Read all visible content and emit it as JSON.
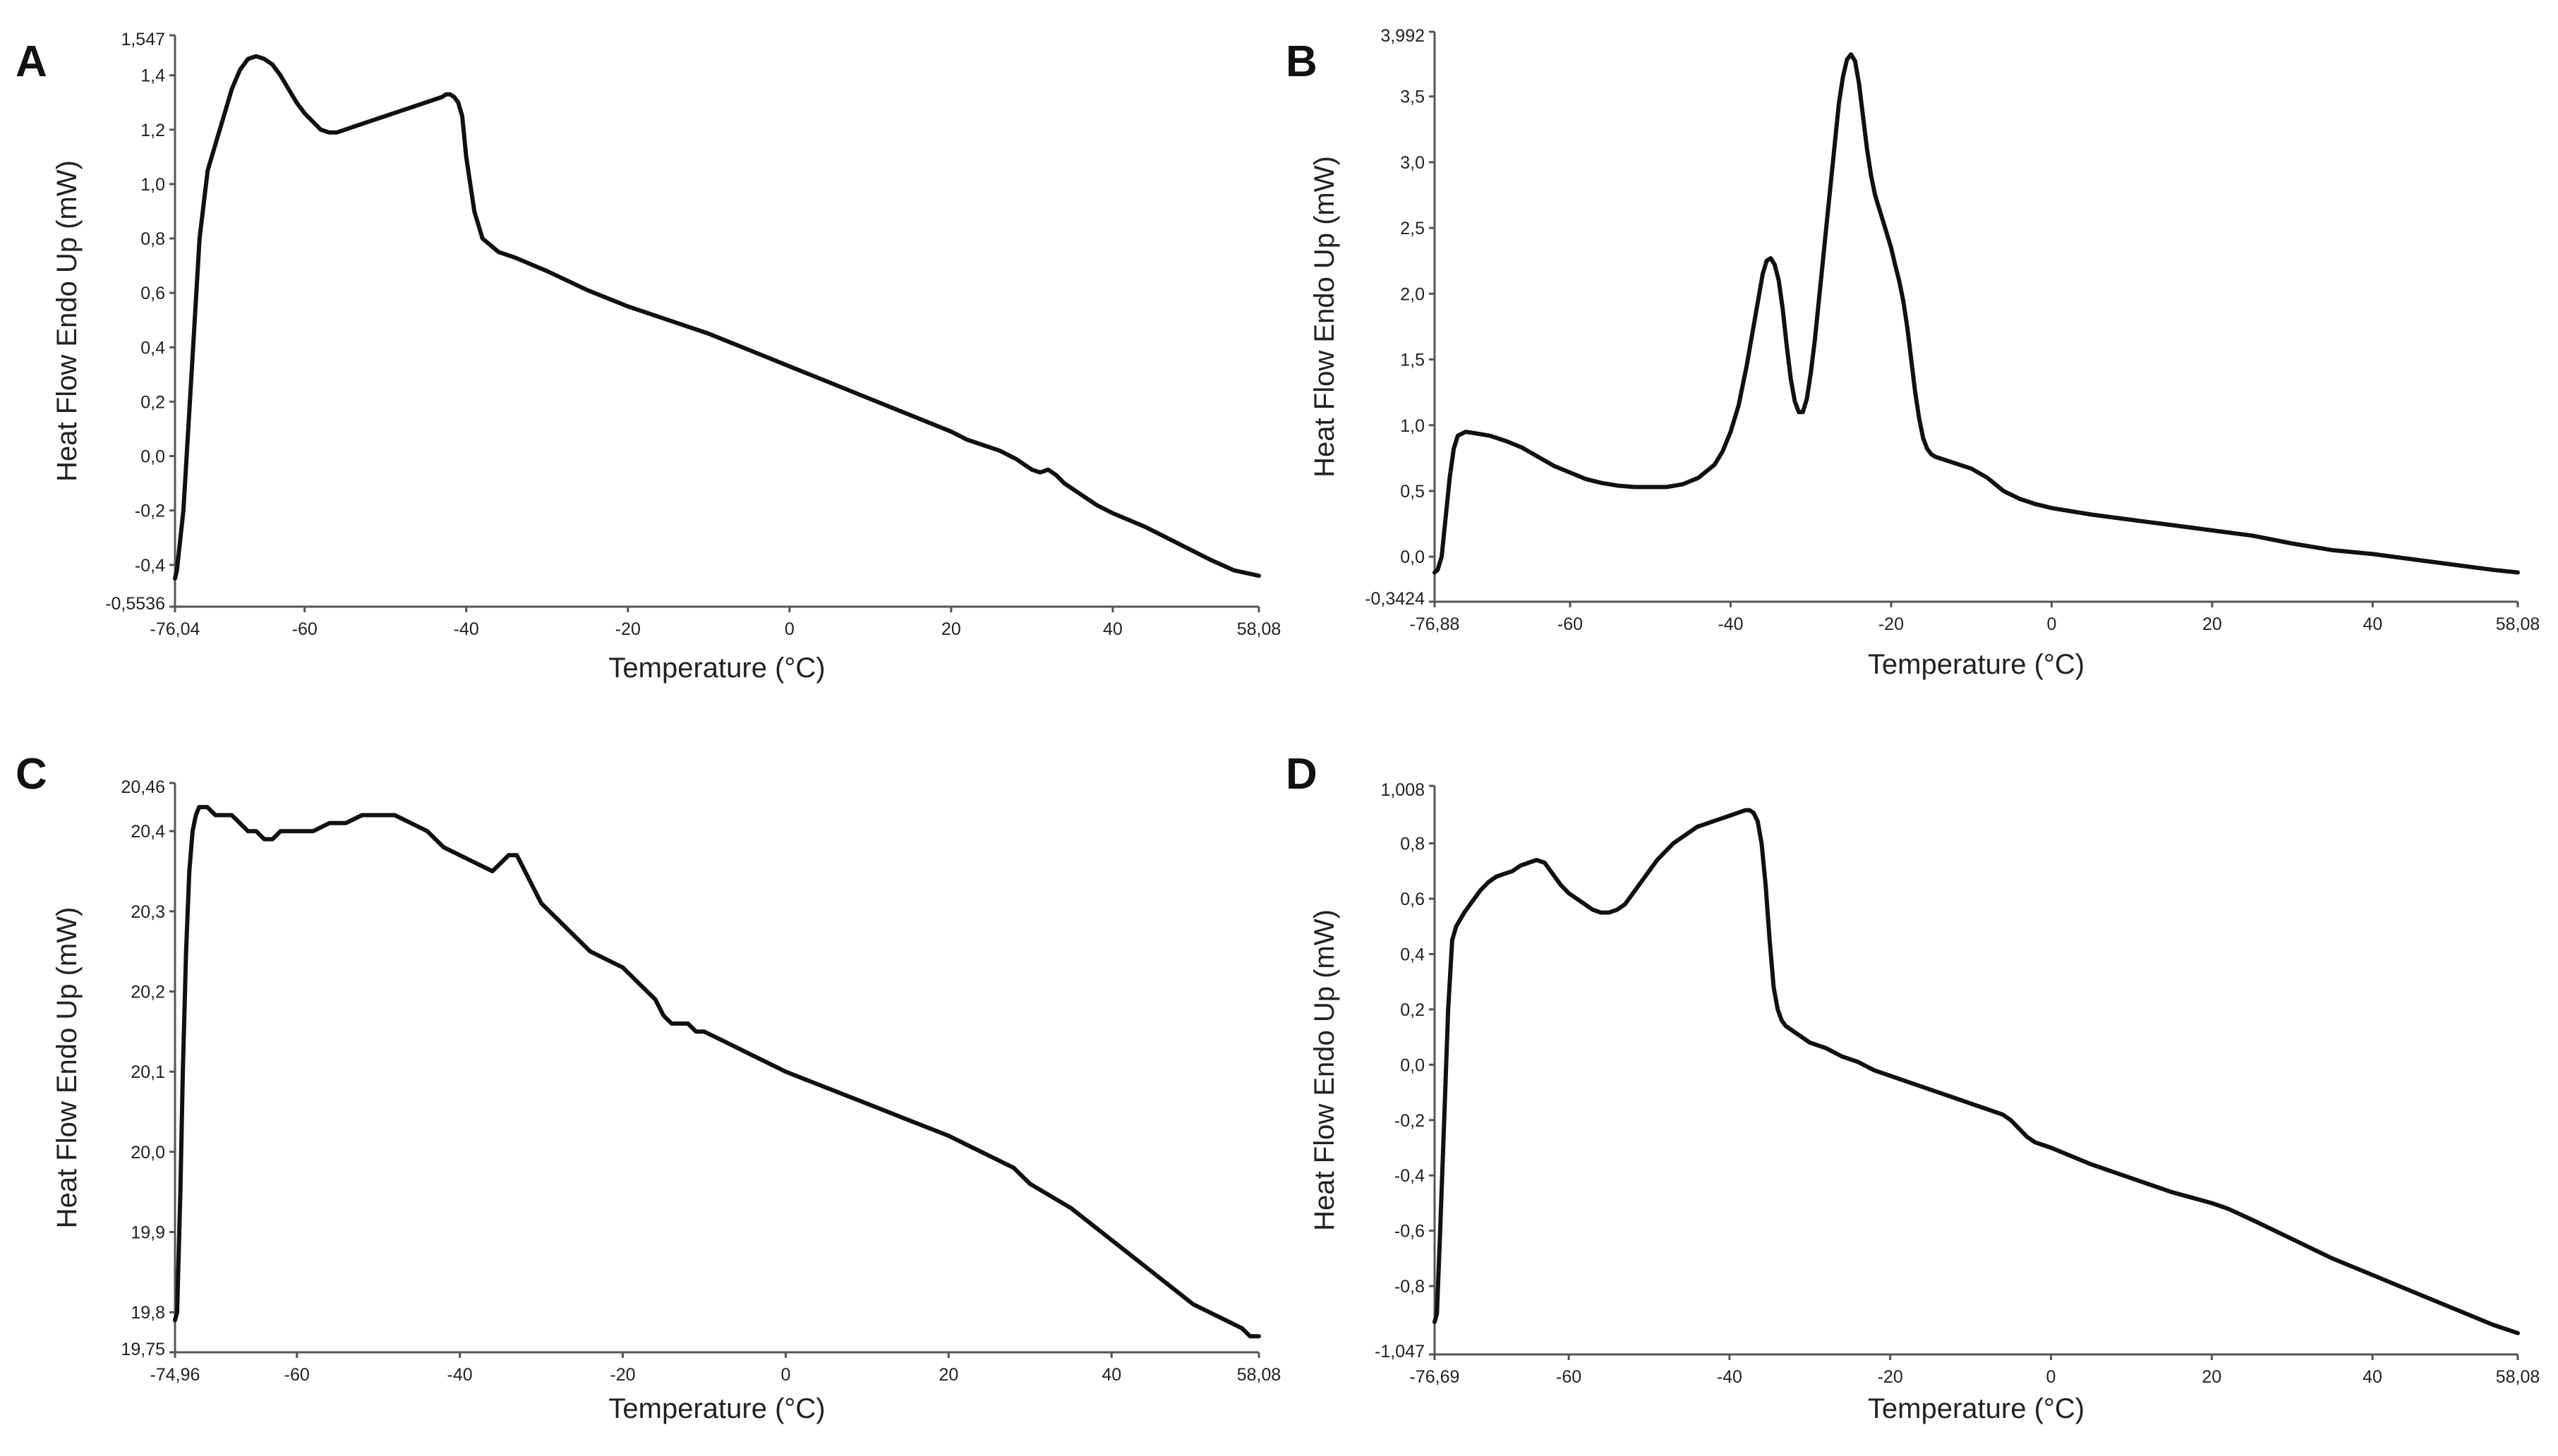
{
  "chart_data": [
    {
      "panel": "A",
      "type": "line",
      "xlabel": "Temperature (°C)",
      "ylabel": "Heat Flow Endo Up (mW)",
      "xlim": [
        -76.04,
        58.08
      ],
      "ylim": [
        -0.5536,
        1.547
      ],
      "x_ticks": [
        -60,
        -40,
        -20,
        0,
        20,
        40
      ],
      "x_tick_labels": [
        "-60",
        "-40",
        "-20",
        "0",
        "20",
        "40"
      ],
      "x_limit_labels": [
        "-76,04",
        "58,08"
      ],
      "y_ticks": [
        -0.4,
        -0.2,
        0.0,
        0.2,
        0.4,
        0.6,
        0.8,
        1.0,
        1.2,
        1.4
      ],
      "y_tick_labels": [
        "-0,4",
        "-0,2",
        "0,0",
        "0,2",
        "0,4",
        "0,6",
        "0,8",
        "1,0",
        "1,2",
        "1,4"
      ],
      "y_limit_labels": [
        "-0,5536",
        "1,547"
      ],
      "series": [
        {
          "name": "A",
          "x": [
            -76.04,
            -75.8,
            -75.0,
            -74.0,
            -73.0,
            -72.0,
            -71.0,
            -70.0,
            -69.0,
            -68.0,
            -67.0,
            -66.0,
            -65.0,
            -64.0,
            -63.0,
            -62.0,
            -61.0,
            -60.0,
            -59.0,
            -58.0,
            -57.0,
            -56.0,
            -55.0,
            -54.0,
            -52.0,
            -50.0,
            -48.0,
            -46.0,
            -44.0,
            -43.0,
            -42.5,
            -42.0,
            -41.5,
            -41.0,
            -40.5,
            -40.0,
            -39.0,
            -38.0,
            -36.0,
            -34.0,
            -30.0,
            -25.0,
            -20.0,
            -15.0,
            -10.0,
            -5.0,
            0.0,
            5.0,
            10.0,
            15.0,
            20.0,
            22.0,
            24.0,
            26.0,
            28.0,
            29.0,
            30.0,
            31.0,
            32.0,
            33.0,
            34.0,
            36.0,
            38.0,
            40.0,
            44.0,
            48.0,
            52.0,
            55.0,
            58.08
          ],
          "y": [
            -0.45,
            -0.42,
            -0.2,
            0.3,
            0.8,
            1.05,
            1.15,
            1.25,
            1.35,
            1.42,
            1.46,
            1.47,
            1.46,
            1.44,
            1.4,
            1.35,
            1.3,
            1.26,
            1.23,
            1.2,
            1.19,
            1.19,
            1.2,
            1.21,
            1.23,
            1.25,
            1.27,
            1.29,
            1.31,
            1.32,
            1.33,
            1.33,
            1.32,
            1.3,
            1.25,
            1.1,
            0.9,
            0.8,
            0.75,
            0.73,
            0.68,
            0.61,
            0.55,
            0.5,
            0.45,
            0.39,
            0.33,
            0.27,
            0.21,
            0.15,
            0.09,
            0.06,
            0.04,
            0.02,
            -0.01,
            -0.03,
            -0.05,
            -0.06,
            -0.05,
            -0.07,
            -0.1,
            -0.14,
            -0.18,
            -0.21,
            -0.26,
            -0.32,
            -0.38,
            -0.42,
            -0.44
          ]
        }
      ]
    },
    {
      "panel": "B",
      "type": "line",
      "xlabel": "Temperature (°C)",
      "ylabel": "Heat Flow Endo Up (mW)",
      "xlim": [
        -76.88,
        58.08
      ],
      "ylim": [
        -0.3424,
        3.992
      ],
      "x_ticks": [
        -60,
        -40,
        -20,
        0,
        20,
        40
      ],
      "x_tick_labels": [
        "-60",
        "-40",
        "-20",
        "0",
        "20",
        "40"
      ],
      "x_limit_labels": [
        "-76,88",
        "58,08"
      ],
      "y_ticks": [
        0.0,
        0.5,
        1.0,
        1.5,
        2.0,
        2.5,
        3.0,
        3.5
      ],
      "y_tick_labels": [
        "0,0",
        "0,5",
        "1,0",
        "1,5",
        "2,0",
        "2,5",
        "3,0",
        "3,5"
      ],
      "y_limit_labels": [
        "-0,3424",
        "3,992"
      ],
      "series": [
        {
          "name": "B",
          "x": [
            -76.88,
            -76.5,
            -76.0,
            -75.5,
            -75.0,
            -74.5,
            -74.0,
            -73.0,
            -72.0,
            -70.0,
            -68.0,
            -66.0,
            -64.0,
            -62.0,
            -60.0,
            -58.0,
            -56.0,
            -54.0,
            -52.0,
            -50.0,
            -48.0,
            -46.0,
            -44.0,
            -42.0,
            -41.0,
            -40.0,
            -39.0,
            -38.0,
            -37.0,
            -36.0,
            -35.5,
            -35.0,
            -34.5,
            -34.0,
            -33.5,
            -33.0,
            -32.5,
            -32.0,
            -31.5,
            -31.0,
            -30.5,
            -30.0,
            -29.5,
            -29.0,
            -28.5,
            -28.0,
            -27.5,
            -27.0,
            -26.5,
            -26.0,
            -25.5,
            -25.0,
            -24.5,
            -24.0,
            -23.5,
            -23.0,
            -22.5,
            -22.0,
            -21.5,
            -21.0,
            -20.5,
            -20.0,
            -19.5,
            -19.0,
            -18.5,
            -18.0,
            -17.5,
            -17.0,
            -16.5,
            -16.0,
            -15.5,
            -15.0,
            -14.5,
            -14.0,
            -13.0,
            -12.0,
            -10.0,
            -8.0,
            -6.0,
            -4.0,
            -2.0,
            0.0,
            5.0,
            10.0,
            15.0,
            20.0,
            25.0,
            30.0,
            35.0,
            40.0,
            45.0,
            50.0,
            55.0,
            58.08
          ],
          "y": [
            -0.12,
            -0.1,
            0.0,
            0.3,
            0.6,
            0.82,
            0.92,
            0.95,
            0.94,
            0.92,
            0.88,
            0.83,
            0.76,
            0.69,
            0.64,
            0.59,
            0.56,
            0.54,
            0.53,
            0.53,
            0.53,
            0.55,
            0.6,
            0.7,
            0.8,
            0.95,
            1.15,
            1.45,
            1.8,
            2.15,
            2.25,
            2.27,
            2.22,
            2.1,
            1.88,
            1.6,
            1.35,
            1.18,
            1.1,
            1.1,
            1.2,
            1.4,
            1.65,
            1.95,
            2.25,
            2.55,
            2.85,
            3.15,
            3.45,
            3.65,
            3.78,
            3.82,
            3.77,
            3.6,
            3.35,
            3.1,
            2.9,
            2.75,
            2.65,
            2.55,
            2.45,
            2.35,
            2.22,
            2.1,
            1.95,
            1.75,
            1.5,
            1.25,
            1.05,
            0.9,
            0.82,
            0.78,
            0.76,
            0.75,
            0.73,
            0.71,
            0.67,
            0.6,
            0.5,
            0.44,
            0.4,
            0.37,
            0.32,
            0.28,
            0.24,
            0.2,
            0.16,
            0.1,
            0.05,
            0.02,
            -0.02,
            -0.06,
            -0.1,
            -0.12
          ]
        }
      ]
    },
    {
      "panel": "C",
      "type": "line",
      "xlabel": "Temperature (°C)",
      "ylabel": "Heat Flow Endo Up (mW)",
      "xlim": [
        -74.96,
        58.08
      ],
      "ylim": [
        19.75,
        20.46
      ],
      "x_ticks": [
        -60,
        -40,
        -20,
        0,
        20,
        40
      ],
      "x_tick_labels": [
        "-60",
        "-40",
        "-20",
        "0",
        "20",
        "40"
      ],
      "x_limit_labels": [
        "-74,96",
        "58,08"
      ],
      "y_ticks": [
        19.8,
        19.9,
        20.0,
        20.1,
        20.2,
        20.3,
        20.4
      ],
      "y_tick_labels": [
        "19,8",
        "19,9",
        "20,0",
        "20,1",
        "20,2",
        "20,3",
        "20,4"
      ],
      "y_limit_labels": [
        "19,75",
        "20,46"
      ],
      "series": [
        {
          "name": "C",
          "x": [
            -74.96,
            -74.7,
            -74.3,
            -74.0,
            -73.6,
            -73.2,
            -72.8,
            -72.4,
            -72.0,
            -71.0,
            -70.0,
            -69.0,
            -68.0,
            -67.0,
            -66.0,
            -65.0,
            -64.0,
            -63.0,
            -62.0,
            -61.0,
            -60.0,
            -58.0,
            -56.0,
            -54.0,
            -52.0,
            -50.0,
            -48.0,
            -46.0,
            -44.0,
            -42.0,
            -40.0,
            -38.0,
            -36.0,
            -35.0,
            -34.0,
            -33.0,
            -32.0,
            -31.0,
            -30.0,
            -28.0,
            -26.0,
            -24.0,
            -22.0,
            -20.0,
            -18.0,
            -16.0,
            -15.0,
            -14.0,
            -13.0,
            -12.0,
            -11.0,
            -10.0,
            -8.0,
            -6.0,
            -4.0,
            -2.0,
            0.0,
            5.0,
            10.0,
            15.0,
            20.0,
            22.0,
            24.0,
            26.0,
            28.0,
            30.0,
            35.0,
            40.0,
            45.0,
            50.0,
            52.0,
            54.0,
            56.0,
            57.0,
            58.08
          ],
          "y": [
            19.79,
            19.8,
            19.95,
            20.1,
            20.25,
            20.35,
            20.4,
            20.42,
            20.43,
            20.43,
            20.42,
            20.42,
            20.42,
            20.41,
            20.4,
            20.4,
            20.39,
            20.39,
            20.4,
            20.4,
            20.4,
            20.4,
            20.41,
            20.41,
            20.42,
            20.42,
            20.42,
            20.41,
            20.4,
            20.38,
            20.37,
            20.36,
            20.35,
            20.36,
            20.37,
            20.37,
            20.35,
            20.33,
            20.31,
            20.29,
            20.27,
            20.25,
            20.24,
            20.23,
            20.21,
            20.19,
            20.17,
            20.16,
            20.16,
            20.16,
            20.15,
            20.15,
            20.14,
            20.13,
            20.12,
            20.11,
            20.1,
            20.08,
            20.06,
            20.04,
            20.02,
            20.01,
            20.0,
            19.99,
            19.98,
            19.96,
            19.93,
            19.89,
            19.85,
            19.81,
            19.8,
            19.79,
            19.78,
            19.77,
            19.77
          ]
        }
      ]
    },
    {
      "panel": "D",
      "type": "line",
      "xlabel": "Temperature (°C)",
      "ylabel": "Heat Flow Endo Up (mW)",
      "xlim": [
        -76.69,
        58.08
      ],
      "ylim": [
        -1.047,
        1.008
      ],
      "x_ticks": [
        -60,
        -40,
        -20,
        0,
        20,
        40
      ],
      "x_tick_labels": [
        "-60",
        "-40",
        "-20",
        "0",
        "20",
        "40"
      ],
      "x_limit_labels": [
        "-76,69",
        "58,08"
      ],
      "y_ticks": [
        -0.8,
        -0.6,
        -0.4,
        -0.2,
        0.0,
        0.2,
        0.4,
        0.6,
        0.8
      ],
      "y_tick_labels": [
        "-0,8",
        "-0,6",
        "-0,4",
        "-0,2",
        "0,0",
        "0,2",
        "0,4",
        "0,6",
        "0,8"
      ],
      "y_limit_labels": [
        "-1,047",
        "1,008"
      ],
      "series": [
        {
          "name": "D",
          "x": [
            -76.69,
            -76.4,
            -76.0,
            -75.5,
            -75.0,
            -74.5,
            -74.0,
            -73.0,
            -72.0,
            -71.0,
            -70.0,
            -69.0,
            -68.0,
            -67.0,
            -66.0,
            -65.0,
            -64.0,
            -63.0,
            -62.0,
            -61.0,
            -60.0,
            -59.0,
            -58.0,
            -57.0,
            -56.0,
            -55.0,
            -54.0,
            -53.0,
            -52.0,
            -51.0,
            -50.0,
            -49.0,
            -48.0,
            -47.0,
            -46.0,
            -45.0,
            -44.0,
            -43.0,
            -42.0,
            -41.0,
            -40.0,
            -39.0,
            -38.0,
            -37.5,
            -37.0,
            -36.5,
            -36.0,
            -35.5,
            -35.0,
            -34.5,
            -34.0,
            -33.5,
            -33.0,
            -32.0,
            -31.0,
            -30.0,
            -28.0,
            -26.0,
            -24.0,
            -22.0,
            -20.0,
            -18.0,
            -16.0,
            -14.0,
            -12.0,
            -10.0,
            -8.0,
            -6.0,
            -5.0,
            -4.0,
            -3.0,
            -2.0,
            -1.0,
            0.0,
            5.0,
            10.0,
            15.0,
            20.0,
            22.0,
            25.0,
            30.0,
            35.0,
            40.0,
            45.0,
            50.0,
            55.0,
            58.08
          ],
          "y": [
            -0.93,
            -0.9,
            -0.6,
            -0.2,
            0.2,
            0.45,
            0.5,
            0.55,
            0.59,
            0.63,
            0.66,
            0.68,
            0.69,
            0.7,
            0.72,
            0.73,
            0.74,
            0.73,
            0.69,
            0.65,
            0.62,
            0.6,
            0.58,
            0.56,
            0.55,
            0.55,
            0.56,
            0.58,
            0.62,
            0.66,
            0.7,
            0.74,
            0.77,
            0.8,
            0.82,
            0.84,
            0.86,
            0.87,
            0.88,
            0.89,
            0.9,
            0.91,
            0.92,
            0.92,
            0.91,
            0.88,
            0.8,
            0.65,
            0.45,
            0.28,
            0.2,
            0.16,
            0.14,
            0.12,
            0.1,
            0.08,
            0.06,
            0.03,
            0.01,
            -0.02,
            -0.04,
            -0.06,
            -0.08,
            -0.1,
            -0.12,
            -0.14,
            -0.16,
            -0.18,
            -0.2,
            -0.23,
            -0.26,
            -0.28,
            -0.29,
            -0.3,
            -0.36,
            -0.41,
            -0.46,
            -0.5,
            -0.52,
            -0.56,
            -0.63,
            -0.7,
            -0.76,
            -0.82,
            -0.88,
            -0.94,
            -0.97
          ]
        }
      ]
    }
  ]
}
